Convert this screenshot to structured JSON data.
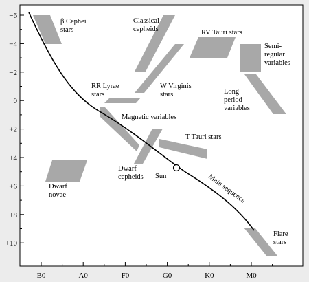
{
  "chart_data": {
    "type": "diagram",
    "title": "",
    "xlabel": "",
    "ylabel": "",
    "x_ticks": [
      "B0",
      "A0",
      "F0",
      "G0",
      "K0",
      "M0"
    ],
    "y_ticks": [
      "−6",
      "−4",
      "−2",
      "0",
      "+2",
      "+4",
      "+6",
      "+8",
      "+10"
    ],
    "regions": [
      {
        "label": "β Cephei stars",
        "lines": [
          "β Cephei",
          "stars"
        ]
      },
      {
        "label": "Classical cepheids",
        "lines": [
          "Classical",
          "cepheids"
        ]
      },
      {
        "label": "RV Tauri stars",
        "lines": [
          "RV Tauri stars"
        ]
      },
      {
        "label": "Semi-regular variables",
        "lines": [
          "Semi-",
          "regular",
          "variables"
        ]
      },
      {
        "label": "RR Lyrae stars",
        "lines": [
          "RR Lyrae",
          "stars"
        ]
      },
      {
        "label": "W Virginis stars",
        "lines": [
          "W Virginis",
          "stars"
        ]
      },
      {
        "label": "Long period variables",
        "lines": [
          "Long",
          "period",
          "variables"
        ]
      },
      {
        "label": "Magnetic variables",
        "lines": [
          "Magnetic variables"
        ]
      },
      {
        "label": "T Tauri stars",
        "lines": [
          "T Tauri stars"
        ]
      },
      {
        "label": "Dwarf cepheids",
        "lines": [
          "Dwarf",
          "cepheids"
        ]
      },
      {
        "label": "Dwarf novae",
        "lines": [
          "Dwarf",
          "novae"
        ]
      },
      {
        "label": "Flare stars",
        "lines": [
          "Flare",
          "stars"
        ]
      }
    ],
    "sun_label": "Sun",
    "main_sequence_label": "Main sequence"
  }
}
